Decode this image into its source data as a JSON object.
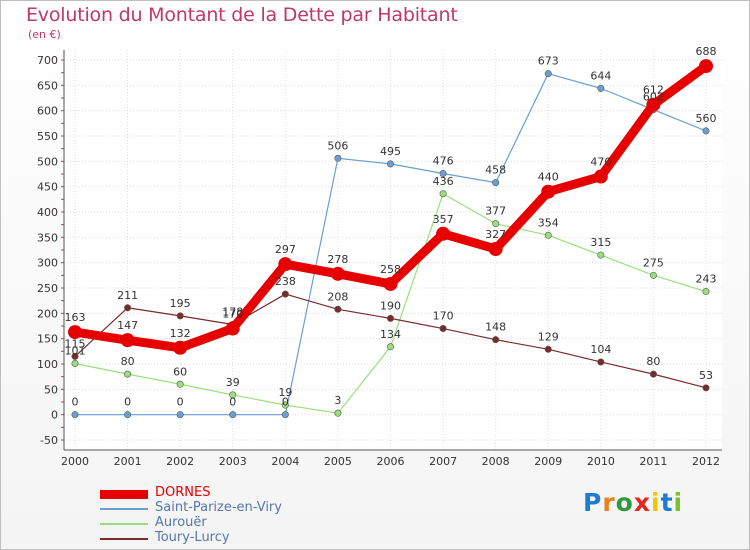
{
  "title": "Evolution du Montant de la Dette par Habitant",
  "subtitle": "(en €)",
  "logo": {
    "letters": [
      "P",
      "r",
      "o",
      "x",
      "i",
      "t",
      "i"
    ],
    "colors": [
      "#1d7ccf",
      "#e8821e",
      "#2e9a3c",
      "#e5271e",
      "#f0c400",
      "#1d7ccf",
      "#7bbf2e"
    ]
  },
  "chart_data": {
    "type": "line",
    "title": "Evolution du Montant de la Dette par Habitant",
    "subtitle": "(en €)",
    "x": [
      "2000",
      "2001",
      "2002",
      "2003",
      "2004",
      "2005",
      "2006",
      "2007",
      "2008",
      "2009",
      "2010",
      "2011",
      "2012"
    ],
    "yticks": [
      "-50",
      "0",
      "50",
      "100",
      "150",
      "200",
      "250",
      "300",
      "350",
      "400",
      "450",
      "500",
      "550",
      "600",
      "650",
      "700"
    ],
    "ylim": [
      -50,
      700
    ],
    "grid": true,
    "legend": "bottom-left",
    "series": [
      {
        "name": "DORNES",
        "color": "#e60000",
        "width": 9,
        "markerRadius": 7,
        "values": [
          163,
          147,
          132,
          170,
          297,
          278,
          258,
          357,
          327,
          440,
          470,
          612,
          688
        ],
        "labels": [
          "163",
          "147",
          "132",
          "170",
          "297",
          "278",
          "258",
          "357",
          "327",
          "440",
          "470",
          "612",
          "688"
        ]
      },
      {
        "name": "Saint-Parize-en-Viry",
        "color": "#6a9fd0",
        "width": 1.2,
        "markerRadius": 3.2,
        "values": [
          0,
          0,
          0,
          0,
          0,
          506,
          495,
          476,
          458,
          673,
          644,
          602,
          560
        ],
        "labels": [
          "0",
          "0",
          "0",
          "0",
          "0",
          "506",
          "495",
          "476",
          "458",
          "673",
          "644",
          "602",
          "560"
        ]
      },
      {
        "name": "Aurouër",
        "color": "#99e07a",
        "width": 1.2,
        "markerRadius": 3.2,
        "values": [
          101,
          80,
          60,
          39,
          19,
          3,
          134,
          436,
          377,
          354,
          315,
          275,
          243
        ],
        "labels": [
          "101",
          "80",
          "60",
          "39",
          "19",
          "3",
          "134",
          "436",
          "377",
          "354",
          "315",
          "275",
          "243"
        ]
      },
      {
        "name": "Toury-Lurcy",
        "color": "#7a2a2a",
        "width": 1.2,
        "markerRadius": 3.2,
        "values": [
          115,
          211,
          195,
          178,
          238,
          208,
          190,
          170,
          148,
          129,
          104,
          80,
          53
        ],
        "labels": [
          "115",
          "211",
          "195",
          "178",
          "238",
          "208",
          "190",
          "170",
          "148",
          "129",
          "104",
          "80",
          "53"
        ]
      }
    ]
  }
}
